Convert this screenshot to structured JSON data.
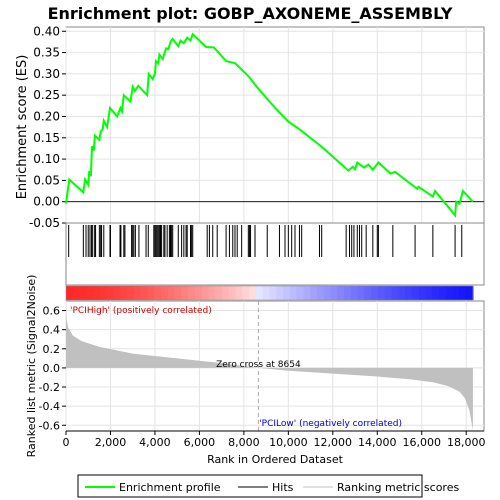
{
  "chart_data": {
    "type": "line",
    "title": "Enrichment plot: GOBP_AXONEME_ASSEMBLY",
    "enrichment_panel": {
      "ylabel": "Enrichment score (ES)",
      "ylim": [
        -0.05,
        0.41
      ],
      "yticks": [
        -0.05,
        0.0,
        0.05,
        0.1,
        0.15,
        0.2,
        0.25,
        0.3,
        0.35,
        0.4
      ],
      "ytick_labels": [
        "-0.05",
        "0.00",
        "0.05",
        "0.10",
        "0.15",
        "0.20",
        "0.25",
        "0.30",
        "0.35",
        "0.40"
      ],
      "series": [
        {
          "name": "Enrichment profile",
          "color": "#00ff00",
          "points": [
            [
              0,
              -0.005
            ],
            [
              150,
              0.052
            ],
            [
              780,
              0.022
            ],
            [
              860,
              0.052
            ],
            [
              1000,
              0.04
            ],
            [
              1050,
              0.072
            ],
            [
              1120,
              0.06
            ],
            [
              1170,
              0.13
            ],
            [
              1250,
              0.12
            ],
            [
              1300,
              0.155
            ],
            [
              1500,
              0.145
            ],
            [
              1560,
              0.165
            ],
            [
              1650,
              0.17
            ],
            [
              1700,
              0.19
            ],
            [
              1850,
              0.175
            ],
            [
              1980,
              0.22
            ],
            [
              2300,
              0.2
            ],
            [
              2450,
              0.22
            ],
            [
              2520,
              0.212
            ],
            [
              2600,
              0.25
            ],
            [
              2900,
              0.235
            ],
            [
              3000,
              0.27
            ],
            [
              3100,
              0.26
            ],
            [
              3250,
              0.272
            ],
            [
              3650,
              0.25
            ],
            [
              3720,
              0.3
            ],
            [
              3900,
              0.288
            ],
            [
              4000,
              0.3
            ],
            [
              4050,
              0.33
            ],
            [
              4150,
              0.325
            ],
            [
              4200,
              0.345
            ],
            [
              4350,
              0.335
            ],
            [
              4500,
              0.36
            ],
            [
              4600,
              0.358
            ],
            [
              4700,
              0.375
            ],
            [
              4800,
              0.382
            ],
            [
              5050,
              0.365
            ],
            [
              5150,
              0.378
            ],
            [
              5300,
              0.372
            ],
            [
              5450,
              0.385
            ],
            [
              5600,
              0.378
            ],
            [
              5700,
              0.393
            ],
            [
              6300,
              0.363
            ],
            [
              6650,
              0.362
            ],
            [
              7200,
              0.33
            ],
            [
              7600,
              0.325
            ],
            [
              8200,
              0.295
            ],
            [
              8654,
              0.265
            ],
            [
              9500,
              0.215
            ],
            [
              10000,
              0.188
            ],
            [
              10500,
              0.17
            ],
            [
              11400,
              0.133
            ],
            [
              11800,
              0.115
            ],
            [
              12700,
              0.073
            ],
            [
              12900,
              0.082
            ],
            [
              13000,
              0.076
            ],
            [
              13100,
              0.092
            ],
            [
              13400,
              0.08
            ],
            [
              13600,
              0.087
            ],
            [
              13800,
              0.075
            ],
            [
              14050,
              0.092
            ],
            [
              14600,
              0.066
            ],
            [
              14800,
              0.07
            ],
            [
              15800,
              0.03
            ],
            [
              15850,
              0.035
            ],
            [
              16500,
              0.012
            ],
            [
              16600,
              0.025
            ],
            [
              17500,
              -0.032
            ],
            [
              17550,
              0.0
            ],
            [
              17700,
              -0.005
            ],
            [
              17850,
              0.025
            ],
            [
              18300,
              0.0
            ]
          ]
        }
      ]
    },
    "hits_panel": {
      "legend_label": "Hits",
      "hit_positions": [
        120,
        780,
        900,
        1000,
        1080,
        1150,
        1200,
        1290,
        1330,
        1500,
        1560,
        1600,
        1700,
        1980,
        2000,
        2430,
        2470,
        2600,
        2650,
        2950,
        3000,
        3050,
        3120,
        3280,
        3600,
        3700,
        3950,
        4000,
        4050,
        4100,
        4150,
        4200,
        4250,
        4300,
        4400,
        4450,
        4550,
        4650,
        4700,
        4750,
        4800,
        5050,
        5200,
        5300,
        5400,
        5450,
        5600,
        5650,
        5700,
        6350,
        6450,
        6600,
        6800,
        7200,
        7350,
        7500,
        7600,
        7700,
        7900,
        8200,
        8250,
        8300,
        8500,
        9050,
        9600,
        9850,
        10000,
        10150,
        10300,
        10500,
        10600,
        11400,
        11500,
        12600,
        12750,
        12850,
        12950,
        13100,
        13200,
        13300,
        13500,
        13800,
        14000,
        14050,
        14700,
        15700,
        16500,
        17500,
        17800
      ]
    },
    "ranking_panel": {
      "legend_label": "Ranking metric scores",
      "ylabel": "Ranked list metric (Signal2Noise)",
      "ylim": [
        -0.66,
        0.7
      ],
      "yticks": [
        -0.6,
        -0.4,
        -0.2,
        0.0,
        0.2,
        0.4,
        0.6
      ],
      "ytick_labels": [
        "-0.6",
        "-0.4",
        "-0.2",
        "0.0",
        "0.2",
        "0.4",
        "0.6"
      ],
      "profile": [
        [
          0,
          0.65
        ],
        [
          30,
          0.5
        ],
        [
          100,
          0.42
        ],
        [
          300,
          0.34
        ],
        [
          700,
          0.28
        ],
        [
          1500,
          0.22
        ],
        [
          3000,
          0.15
        ],
        [
          5000,
          0.1
        ],
        [
          7000,
          0.05
        ],
        [
          8654,
          0.0
        ],
        [
          10000,
          -0.03
        ],
        [
          12000,
          -0.06
        ],
        [
          14000,
          -0.09
        ],
        [
          15500,
          -0.12
        ],
        [
          16500,
          -0.15
        ],
        [
          17200,
          -0.19
        ],
        [
          17700,
          -0.25
        ],
        [
          17950,
          -0.32
        ],
        [
          18150,
          -0.45
        ],
        [
          18280,
          -0.62
        ],
        [
          18300,
          -0.65
        ]
      ],
      "zero_cross_label": "Zero cross at 8654",
      "zero_cross": 8654,
      "pos_label": "'PCIHigh' (positively correlated)",
      "neg_label": "'PCILow' (negatively correlated)",
      "colors": {
        "pos": "#cc0000",
        "neg": "#0000cc",
        "fill": "#c0c0c0"
      }
    },
    "xaxis": {
      "xlabel": "Rank in Ordered Dataset",
      "xlim": [
        0,
        18800
      ],
      "xticks": [
        0,
        2000,
        4000,
        6000,
        8000,
        10000,
        12000,
        14000,
        16000,
        18000
      ],
      "xtick_labels": [
        "0",
        "2,000",
        "4,000",
        "6,000",
        "8,000",
        "10,000",
        "12,000",
        "14,000",
        "16,000",
        "18,000"
      ],
      "n_genes": 18300
    }
  },
  "legend": {
    "items": [
      {
        "label": "Enrichment profile",
        "color": "#00ff00",
        "kind": "line"
      },
      {
        "label": "Hits",
        "color": "#000000",
        "kind": "line"
      },
      {
        "label": "Ranking metric scores",
        "color": "#c0c0c0",
        "kind": "line"
      }
    ]
  }
}
